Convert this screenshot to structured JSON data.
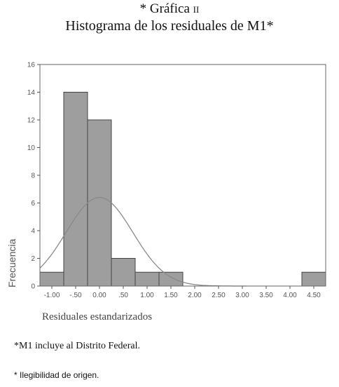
{
  "title_top": "* Gráfica ",
  "title_roman": "ii",
  "title_main": "Histograma de los residuales de M1*",
  "footnote_1": "*M1 incluye al Distrito Federal.",
  "footnote_2": "* Ilegibilidad de origen.",
  "chart_data": {
    "type": "bar",
    "subtype": "histogram",
    "xlabel": "Residuales estandarizados",
    "ylabel": "Frecuencia",
    "xlim": [
      -1.25,
      4.75
    ],
    "ylim": [
      0,
      16
    ],
    "x_ticks": [
      -1.0,
      -0.5,
      0.0,
      0.5,
      1.0,
      1.5,
      2.0,
      2.5,
      3.0,
      3.5,
      4.0,
      4.5
    ],
    "x_tick_labels": [
      "-1.00",
      "-.50",
      "0.00",
      ".50",
      "1.00",
      "1.50",
      "2.00",
      "2.50",
      "3.00",
      "3.50",
      "4.00",
      "4.50"
    ],
    "y_ticks": [
      0,
      2,
      4,
      6,
      8,
      10,
      12,
      14,
      16
    ],
    "y_tick_labels": [
      "0",
      "2",
      "4",
      "6",
      "8",
      "10",
      "12",
      "14",
      "16"
    ],
    "bins": [
      {
        "from": -1.25,
        "to": -0.75,
        "value": 1
      },
      {
        "from": -0.75,
        "to": -0.25,
        "value": 14
      },
      {
        "from": -0.25,
        "to": 0.25,
        "value": 12
      },
      {
        "from": 0.25,
        "to": 0.75,
        "value": 2
      },
      {
        "from": 0.75,
        "to": 1.25,
        "value": 1
      },
      {
        "from": 1.25,
        "to": 1.75,
        "value": 1
      },
      {
        "from": 4.25,
        "to": 4.75,
        "value": 1
      }
    ],
    "normal_curve": {
      "mean": 0.0,
      "peak": 6.4,
      "sd": 0.7
    },
    "grid": false,
    "bar_color": "#9e9e9e",
    "curve_color": "#8a8a8a"
  }
}
